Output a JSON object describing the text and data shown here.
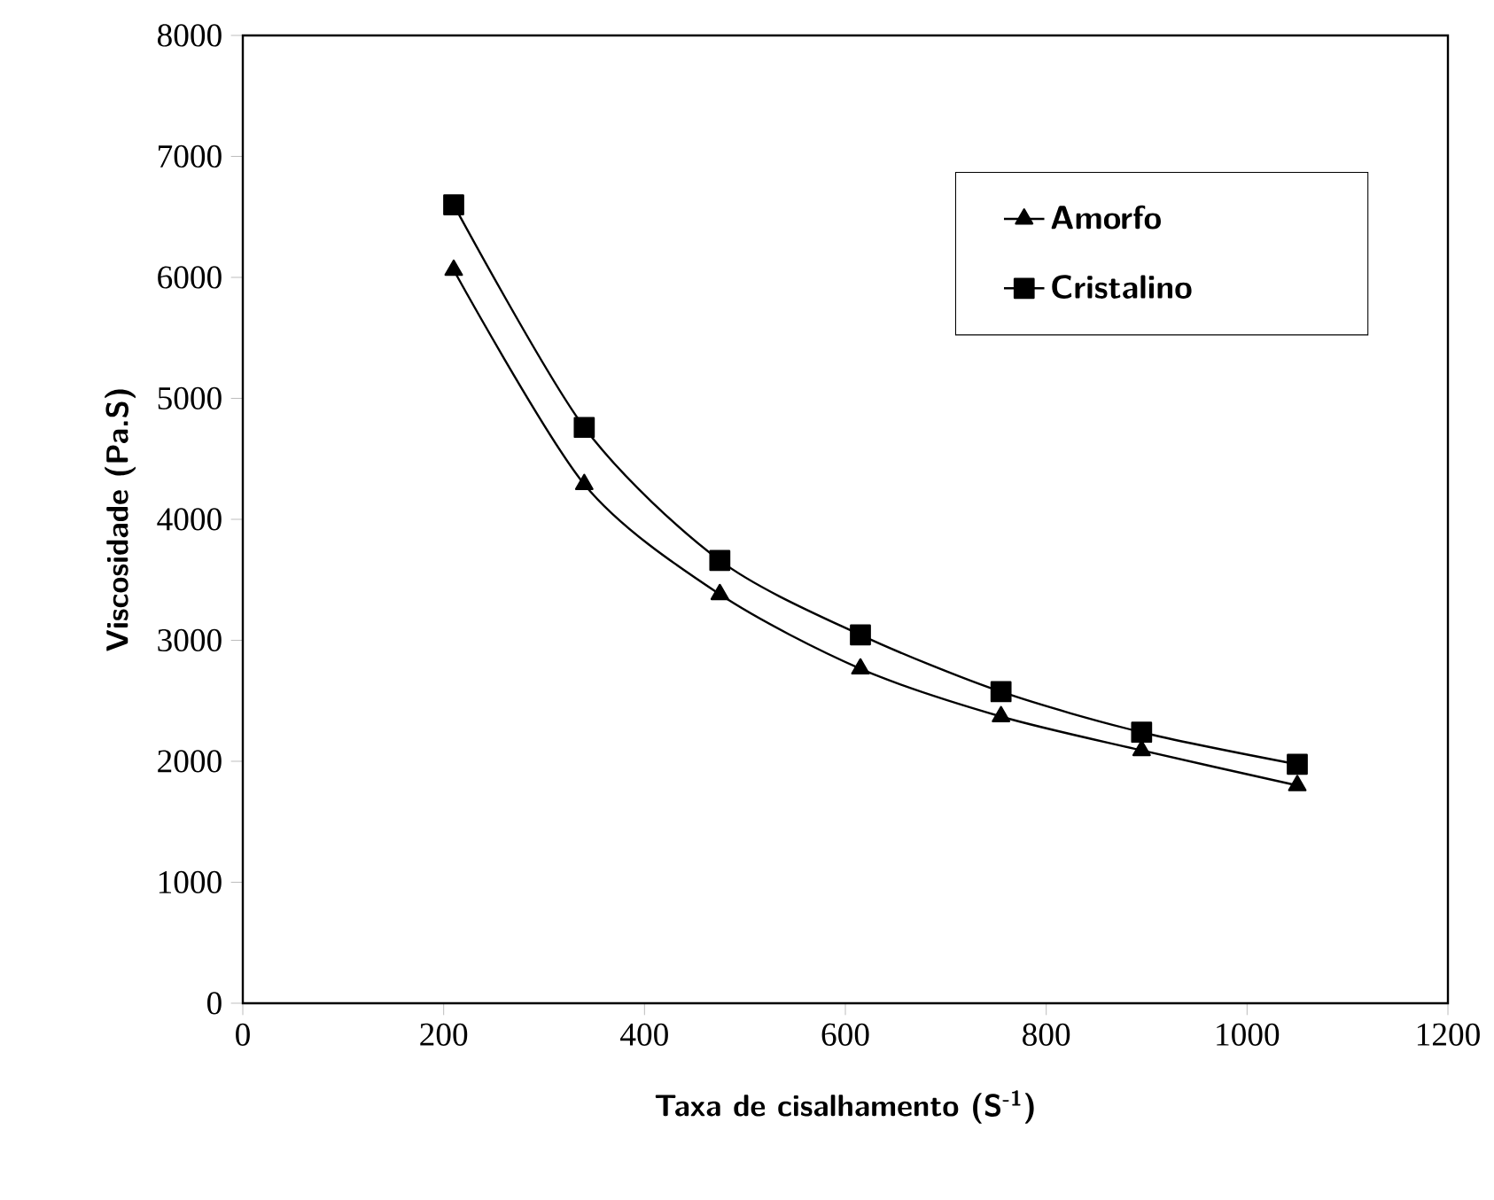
{
  "chart_data": {
    "type": "line",
    "xlabel": "Taxa de cisalhamento (S$^{-1}$)",
    "ylabel": "Viscosidade (Pa.S)",
    "x": [
      210,
      340,
      475,
      615,
      755,
      895,
      1050
    ],
    "series": [
      {
        "name": "Amorfo",
        "color": "#000000",
        "marker": "triangle",
        "values": [
          6060,
          4290,
          3380,
          2765,
          2370,
          2090,
          1800
        ]
      },
      {
        "name": "Cristalino",
        "color": "#000000",
        "marker": "square",
        "values": [
          6600,
          4760,
          3660,
          3045,
          2575,
          2240,
          1975
        ]
      }
    ],
    "xlim": [
      0,
      1200
    ],
    "ylim": [
      0,
      8000
    ],
    "xticks": [
      0,
      200,
      400,
      600,
      800,
      1000,
      1200
    ],
    "yticks": [
      0,
      1000,
      2000,
      3000,
      4000,
      5000,
      6000,
      7000,
      8000
    ],
    "legend": "top right",
    "grid": false
  }
}
